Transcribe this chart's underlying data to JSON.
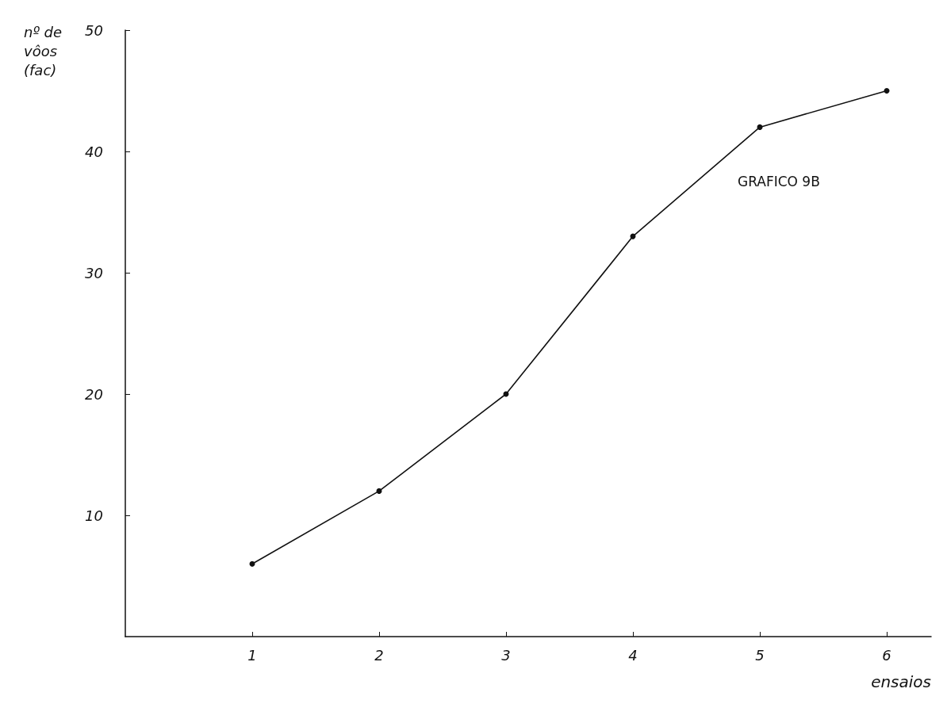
{
  "chart_data": {
    "type": "line",
    "title": "GRAFICO 9B",
    "xlabel": "ensaios",
    "ylabel": "nº de\nvôos\n(fac)",
    "x": [
      1,
      2,
      3,
      4,
      5,
      6
    ],
    "series": [
      {
        "color": "#111111",
        "values": [
          6,
          12,
          20,
          33,
          42,
          45
        ]
      }
    ],
    "xlim": [
      0,
      6.35
    ],
    "xticks": [
      1,
      2,
      3,
      4,
      5,
      6
    ],
    "ylim": [
      0,
      50
    ],
    "yticks": [
      10,
      20,
      30,
      40,
      50
    ],
    "grid": false,
    "marker": "circle",
    "line_style": "solid"
  }
}
